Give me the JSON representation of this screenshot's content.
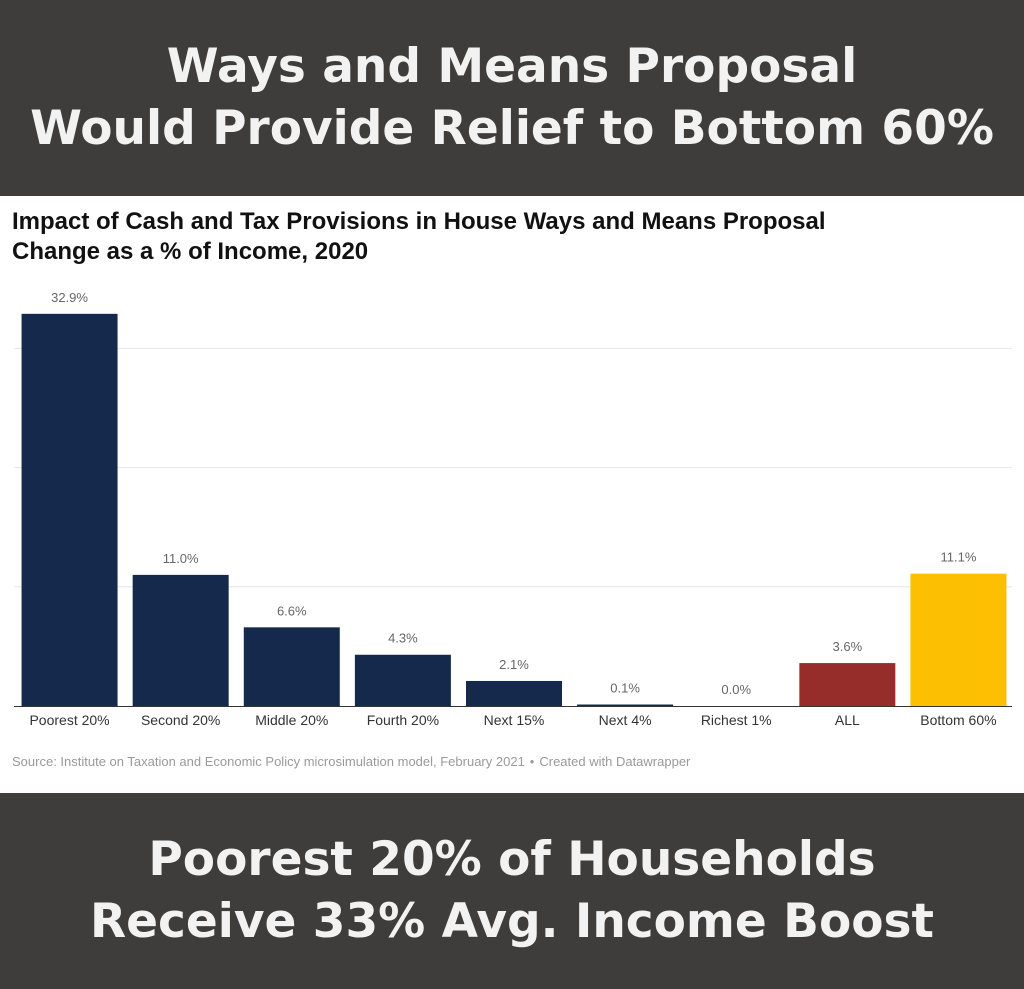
{
  "header": {
    "headline_line1": "Ways and Means Proposal",
    "headline_line2": "Would Provide Relief to Bottom 60%"
  },
  "footer": {
    "headline_line1": "Poorest 20% of Households",
    "headline_line2": "Receive 33% Avg. Income Boost"
  },
  "source": {
    "text": "Source: Institute on Taxation and Economic Policy microsimulation model, February 2021",
    "separator": "•",
    "credit": "Created with Datawrapper"
  },
  "colors": {
    "banner_bg": "#3e3d3b",
    "banner_text": "#f2f2f2",
    "quintile_bar": "#15294d",
    "all_bar": "#962d2a",
    "bottom60_bar": "#fcbf02",
    "gridline": "#e6e6e6",
    "value_label": "#666666"
  },
  "chart_data": {
    "type": "bar",
    "title": "Impact of Cash and Tax Provisions in House Ways and Means Proposal",
    "subtitle": "Change as a % of Income, 2020",
    "categories": [
      "Poorest 20%",
      "Second 20%",
      "Middle 20%",
      "Fourth 20%",
      "Next 15%",
      "Next 4%",
      "Richest 1%",
      "ALL",
      "Bottom 60%"
    ],
    "values": [
      32.9,
      11.0,
      6.6,
      4.3,
      2.1,
      0.1,
      0.0,
      3.6,
      11.1
    ],
    "value_labels": [
      "32.9%",
      "11.0%",
      "6.6%",
      "4.3%",
      "2.1%",
      "0.1%",
      "0.0%",
      "3.6%",
      "11.1%"
    ],
    "bar_colors": [
      "#15294d",
      "#15294d",
      "#15294d",
      "#15294d",
      "#15294d",
      "#15294d",
      "#15294d",
      "#962d2a",
      "#fcbf02"
    ],
    "ylim": [
      0,
      33
    ],
    "gridlines": [
      10,
      20,
      30
    ],
    "grid": true,
    "legend": false,
    "xlabel": "",
    "ylabel": ""
  }
}
